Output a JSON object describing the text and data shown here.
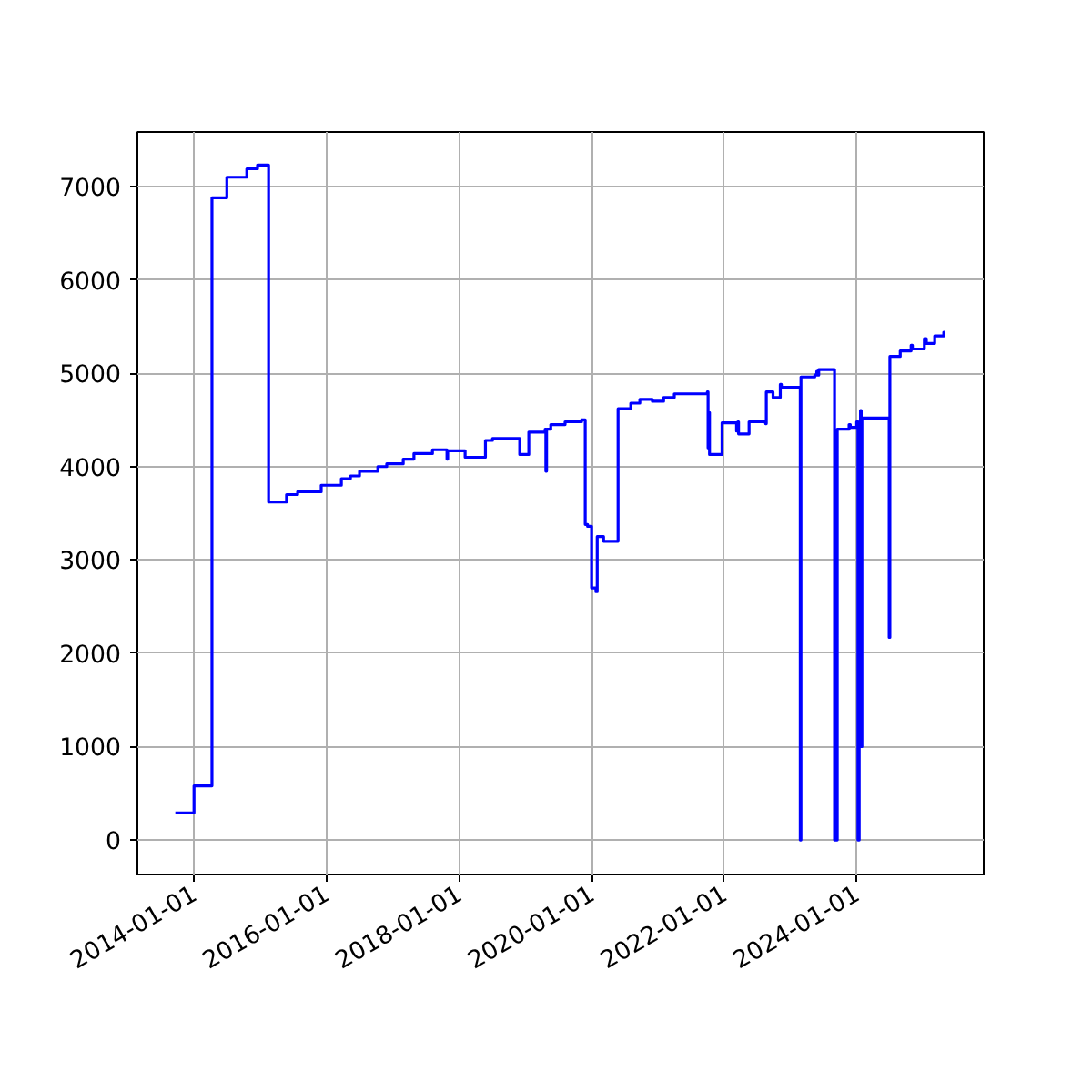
{
  "chart_data": {
    "type": "step",
    "x": [
      "2013-09-20",
      "2014-01-01",
      "2014-04-10",
      "2014-07-01",
      "2014-10-19",
      "2014-12-17",
      "2015-02-16",
      "2015-05-26",
      "2015-07-26",
      "2015-12-03",
      "2016-03-23",
      "2016-05-12",
      "2016-07-01",
      "2016-10-10",
      "2016-11-28",
      "2017-02-27",
      "2017-04-27",
      "2017-08-07",
      "2017-10-26",
      "2017-10-30",
      "2017-12-15",
      "2018-02-03",
      "2018-05-26",
      "2018-07-04",
      "2018-12-01",
      "2019-01-20",
      "2019-04-20",
      "2019-04-24",
      "2019-04-28",
      "2019-05-21",
      "2019-08-08",
      "2019-11-07",
      "2019-11-27",
      "2019-12-10",
      "2020-01-01",
      "2020-01-25",
      "2020-02-01",
      "2020-03-07",
      "2020-05-26",
      "2020-08-04",
      "2020-09-23",
      "2020-12-01",
      "2021-02-01",
      "2021-04-01",
      "2021-09-30",
      "2021-10-04",
      "2021-10-08",
      "2021-10-12",
      "2021-12-20",
      "2022-03-10",
      "2022-03-17",
      "2022-03-21",
      "2022-05-18",
      "2022-08-17",
      "2022-08-21",
      "2022-09-27",
      "2022-11-06",
      "2022-11-12",
      "2023-02-24",
      "2023-02-28",
      "2023-05-15",
      "2023-05-26",
      "2023-06-02",
      "2023-06-06",
      "2023-09-01",
      "2023-09-16",
      "2023-11-20",
      "2023-11-27",
      "2024-01-01",
      "2024-01-08",
      "2024-01-15",
      "2024-01-22",
      "2024-01-26",
      "2024-01-30",
      "2024-06-28",
      "2024-07-02",
      "2024-08-28",
      "2024-10-27",
      "2024-11-03",
      "2025-01-08",
      "2025-01-19",
      "2025-03-06",
      "2025-04-25",
      "2025-04-29"
    ],
    "series": [
      {
        "color": "#0000ff",
        "values": [
          290,
          580,
          6880,
          7100,
          7190,
          7230,
          3620,
          3700,
          3730,
          3800,
          3870,
          3900,
          3950,
          4000,
          4030,
          4080,
          4140,
          4180,
          4080,
          4170,
          4170,
          4100,
          4280,
          4300,
          4130,
          4370,
          4400,
          3950,
          4400,
          4450,
          4480,
          4500,
          3380,
          3360,
          2700,
          2660,
          3250,
          3200,
          4620,
          4680,
          4720,
          4700,
          4740,
          4780,
          4800,
          4200,
          4580,
          4130,
          4470,
          4380,
          4480,
          4350,
          4480,
          4460,
          4800,
          4740,
          4880,
          4850,
          0,
          4960,
          4980,
          5020,
          4980,
          5040,
          0,
          4400,
          4450,
          4420,
          4480,
          0,
          4480,
          4600,
          1000,
          4520,
          2170,
          5180,
          5240,
          5300,
          5260,
          5370,
          5320,
          5400,
          5440,
          5440
        ]
      }
    ],
    "xlim": [
      "2013-02-23",
      "2025-12-01"
    ],
    "ylim": [
      -370,
      7585
    ],
    "xticks": [
      {
        "value": "2014-01-01",
        "label": "2014-01-01"
      },
      {
        "value": "2016-01-01",
        "label": "2016-01-01"
      },
      {
        "value": "2018-01-01",
        "label": "2018-01-01"
      },
      {
        "value": "2020-01-01",
        "label": "2020-01-01"
      },
      {
        "value": "2022-01-01",
        "label": "2022-01-01"
      },
      {
        "value": "2024-01-01",
        "label": "2024-01-01"
      }
    ],
    "yticks": [
      0,
      1000,
      2000,
      3000,
      4000,
      5000,
      6000,
      7000
    ],
    "grid": true
  }
}
